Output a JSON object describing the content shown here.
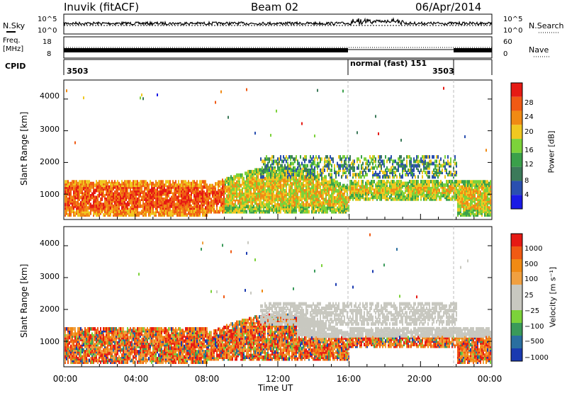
{
  "header": {
    "station": "Inuvik (fitACF)",
    "beam": "Beam 02",
    "date": "06/Apr/2014"
  },
  "status_panels": {
    "nsky_label": "N.Sky",
    "nsky_ticks": [
      "10^5",
      "10^0"
    ],
    "nsearch_label": "N.Search",
    "nsearch_ticks": [
      "10^5",
      "10^0"
    ],
    "freq_label_1": "Freq.",
    "freq_label_2": "[MHz]",
    "freq_ticks": [
      "18",
      "8"
    ],
    "nave_label": "Nave",
    "nave_ticks": [
      "60",
      "0"
    ],
    "cpid_label": "CPID",
    "cpid_segments": [
      "3503",
      "normal (fast) 151",
      "3503"
    ]
  },
  "colors": {
    "power_scale": [
      "#1a1ae6",
      "#2a4fb0",
      "#3c7a5a",
      "#3aa04a",
      "#7cd23a",
      "#f0c820",
      "#f08a14",
      "#f05a14",
      "#e61a14"
    ],
    "velocity_scale": [
      "#e61a14",
      "#f05a14",
      "#f08a14",
      "#f0a040",
      "#c8c8c0",
      "#c8c8c0",
      "#7cd23a",
      "#3a9a5a",
      "#2a6fa0",
      "#1a3ab0"
    ]
  },
  "chart_data": [
    {
      "type": "heatmap",
      "title": "",
      "xlabel": "",
      "ylabel": "Slant Range [km]",
      "x_ticks": [
        "00:00",
        "04:00",
        "08:00",
        "12:00",
        "16:00",
        "20:00",
        "00:00"
      ],
      "y_ticks": [
        "1000",
        "2000",
        "3000",
        "4000"
      ],
      "ylim": [
        200,
        4600
      ],
      "colorbar_label": "Power [dB]",
      "colorbar_ticks": [
        "4",
        "8",
        "12",
        "16",
        "20",
        "24",
        "28"
      ]
    },
    {
      "type": "heatmap",
      "title": "",
      "xlabel": "Time UT",
      "ylabel": "Slant Range [km]",
      "x_ticks": [
        "00:00",
        "04:00",
        "08:00",
        "12:00",
        "16:00",
        "20:00",
        "00:00"
      ],
      "y_ticks": [
        "1000",
        "2000",
        "3000",
        "4000"
      ],
      "ylim": [
        200,
        4600
      ],
      "colorbar_label": "Velocity [m s⁻¹]",
      "colorbar_ticks": [
        "1000",
        "500",
        "100",
        "25",
        "−25",
        "−100",
        "−500",
        "−1000"
      ]
    }
  ]
}
